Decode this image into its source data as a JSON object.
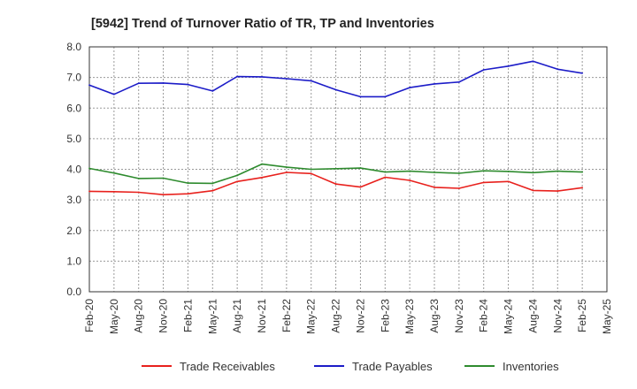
{
  "chart_data": {
    "type": "line",
    "title": "[5942]  Trend of Turnover Ratio of TR, TP and Inventories",
    "xlabel": "",
    "ylabel": "",
    "ylim": [
      0,
      8
    ],
    "y_ticks": [
      "0.0",
      "1.0",
      "2.0",
      "3.0",
      "4.0",
      "5.0",
      "6.0",
      "7.0",
      "8.0"
    ],
    "x_tick_labels": [
      "Feb-20",
      "May-20",
      "Aug-20",
      "Nov-20",
      "Feb-21",
      "May-21",
      "Aug-21",
      "Nov-21",
      "Feb-22",
      "May-22",
      "Aug-22",
      "Nov-22",
      "Feb-23",
      "May-23",
      "Aug-23",
      "Nov-23",
      "Feb-24",
      "May-24",
      "Aug-24",
      "Nov-24",
      "Feb-25",
      "May-25"
    ],
    "x": [
      "Feb-20",
      "May-20",
      "Aug-20",
      "Nov-20",
      "Feb-21",
      "May-21",
      "Aug-21",
      "Nov-21",
      "Feb-22",
      "May-22",
      "Aug-22",
      "Nov-22",
      "Feb-23",
      "May-23",
      "Aug-23",
      "Nov-23",
      "Feb-24",
      "May-24",
      "Aug-24",
      "Nov-24",
      "Feb-25"
    ],
    "grid": "dotted",
    "legend_position": "bottom",
    "series": [
      {
        "name": "Trade Receivables",
        "color": "#e8211d",
        "values": [
          3.28,
          3.27,
          3.25,
          3.17,
          3.2,
          3.3,
          3.6,
          3.73,
          3.9,
          3.86,
          3.52,
          3.42,
          3.74,
          3.64,
          3.41,
          3.38,
          3.57,
          3.6,
          3.31,
          3.29,
          3.4
        ]
      },
      {
        "name": "Trade Payables",
        "color": "#1c1cc8",
        "values": [
          6.75,
          6.45,
          6.81,
          6.82,
          6.77,
          6.56,
          7.03,
          7.02,
          6.96,
          6.89,
          6.6,
          6.37,
          6.37,
          6.67,
          6.79,
          6.85,
          7.25,
          7.37,
          7.53,
          7.27,
          7.14
        ]
      },
      {
        "name": "Inventories",
        "color": "#2e8b2e",
        "values": [
          4.03,
          3.88,
          3.7,
          3.71,
          3.55,
          3.54,
          3.8,
          4.17,
          4.07,
          4.0,
          4.02,
          4.04,
          3.91,
          3.94,
          3.9,
          3.87,
          3.95,
          3.93,
          3.89,
          3.94,
          3.91
        ]
      }
    ]
  }
}
